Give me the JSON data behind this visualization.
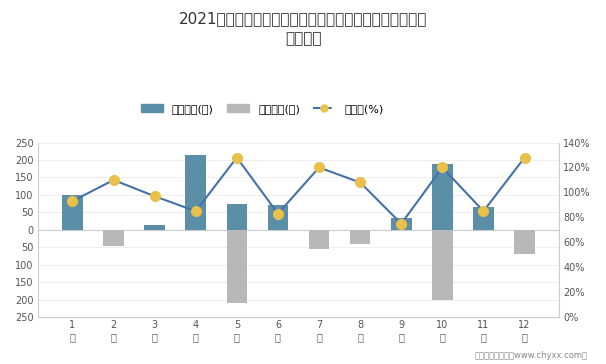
{
  "title_line1": "2021年江苏跃进摩托车制造有限责任公司库存情况及产销",
  "title_line2": "率统计图",
  "months": [
    "1\n月",
    "2\n月",
    "3\n月",
    "4\n月",
    "5\n月",
    "6\n月",
    "7\n月",
    "8\n月",
    "9\n月",
    "10\n月",
    "11\n月",
    "12\n月"
  ],
  "jiya": [
    100,
    0,
    15,
    215,
    75,
    72,
    0,
    0,
    35,
    190,
    65,
    0
  ],
  "qingcang": [
    0,
    -45,
    0,
    0,
    -210,
    0,
    -55,
    -40,
    0,
    -200,
    0,
    -70
  ],
  "chanshaolv": [
    93,
    110,
    97,
    85,
    128,
    83,
    120,
    108,
    75,
    120,
    85,
    128
  ],
  "bar_color_jiya": "#5b8fa8",
  "bar_color_qingcang": "#b8b8b8",
  "line_color": "#4472a8",
  "marker_color": "#e8c04a",
  "marker_edge_color": "#e8c04a",
  "background_color": "#ffffff",
  "ylim_left": [
    -250,
    250
  ],
  "ylim_right": [
    0,
    140
  ],
  "ylabel_right_ticks": [
    0,
    20,
    40,
    60,
    80,
    100,
    120,
    140
  ],
  "ylabel_left_ticks": [
    -250,
    -200,
    -150,
    -100,
    -50,
    0,
    50,
    100,
    150,
    200,
    250
  ],
  "footnote": "制图：智研咨询（www.chyxx.com）",
  "legend_labels": [
    "积压库存(辆)",
    "清仓库存(辆)",
    "产销率(%)"
  ]
}
